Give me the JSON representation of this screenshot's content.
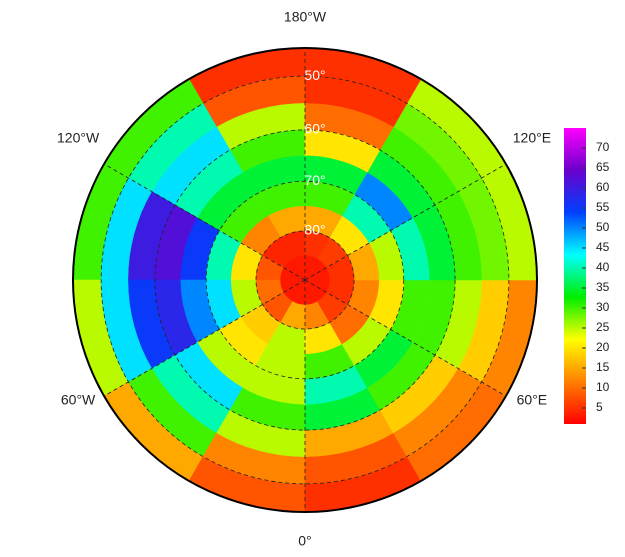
{
  "map": {
    "lon_labels": [
      {
        "value": -180,
        "label": "180°W"
      },
      {
        "value": -120,
        "label": "120°W"
      },
      {
        "value": -60,
        "label": "60°W"
      },
      {
        "value": 0,
        "label": "0°"
      },
      {
        "value": 60,
        "label": "60°E"
      },
      {
        "value": 120,
        "label": "120°E"
      }
    ],
    "lat_labels": [
      {
        "value": 50,
        "label": "50°"
      },
      {
        "value": 60,
        "label": "60°"
      },
      {
        "value": 70,
        "label": "70°"
      },
      {
        "value": 80,
        "label": "80°"
      }
    ],
    "grid": {
      "lat_edges": [
        45,
        50,
        55,
        60,
        65,
        70,
        75,
        80,
        85,
        90
      ],
      "lon_edges": [
        -180,
        -150,
        -120,
        -90,
        -60,
        -30,
        0,
        30,
        60,
        90,
        120,
        150,
        180
      ],
      "values": [
        [
          5,
          30,
          30,
          25,
          15,
          8,
          5,
          10,
          12,
          25,
          25,
          5
        ],
        [
          8,
          40,
          45,
          45,
          30,
          12,
          8,
          12,
          18,
          28,
          28,
          5
        ],
        [
          25,
          45,
          60,
          55,
          40,
          25,
          15,
          18,
          25,
          30,
          30,
          10
        ],
        [
          30,
          40,
          62,
          58,
          45,
          30,
          35,
          30,
          30,
          35,
          35,
          20
        ],
        [
          35,
          35,
          55,
          50,
          25,
          25,
          40,
          35,
          30,
          40,
          50,
          35
        ],
        [
          30,
          30,
          40,
          45,
          20,
          25,
          30,
          25,
          20,
          25,
          40,
          30
        ],
        [
          15,
          12,
          20,
          25,
          18,
          25,
          20,
          10,
          12,
          15,
          20,
          15
        ],
        [
          4,
          4,
          8,
          10,
          8,
          15,
          12,
          6,
          5,
          5,
          6,
          5
        ],
        [
          3,
          3,
          3,
          3,
          3,
          3,
          3,
          3,
          3,
          3,
          3,
          3
        ]
      ]
    },
    "colorbar": {
      "range": [
        1,
        75
      ],
      "ticks": [
        5,
        10,
        15,
        20,
        25,
        30,
        35,
        40,
        45,
        50,
        55,
        60,
        65,
        70
      ],
      "colors": [
        "#ff0000",
        "#ff7f00",
        "#ffff00",
        "#00ee00",
        "#00ffff",
        "#0040ff",
        "#6a00cc",
        "#ff00ff"
      ]
    }
  }
}
